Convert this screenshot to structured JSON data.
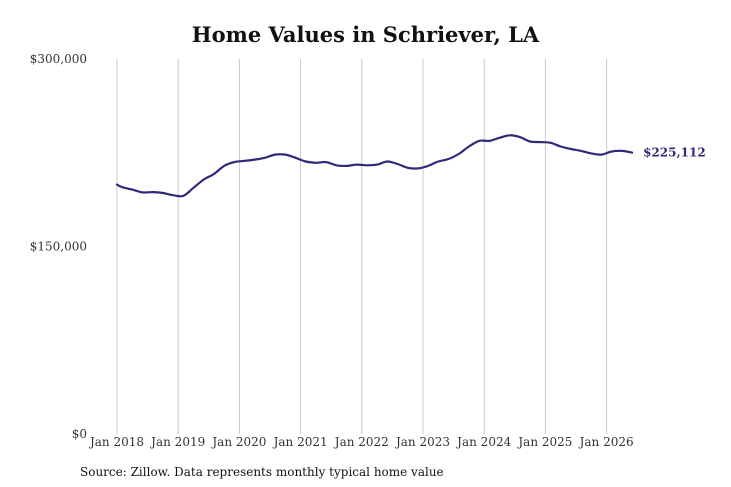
{
  "chart_data": {
    "type": "line",
    "title": "Home Values in Schriever, LA",
    "source": "Source: Zillow. Data represents monthly typical home value",
    "xlabel": "",
    "ylabel": "",
    "ylim": [
      0,
      300000
    ],
    "xlim": [
      "2018-01",
      "2026-06"
    ],
    "grid": {
      "vertical": true,
      "horizontal": false
    },
    "y_ticks": [
      {
        "value": 0,
        "label": "$0"
      },
      {
        "value": 150000,
        "label": "$150,000"
      },
      {
        "value": 300000,
        "label": "$300,000"
      }
    ],
    "x_ticks": [
      {
        "date": "2018-01",
        "label": "Jan 2018"
      },
      {
        "date": "2019-01",
        "label": "Jan 2019"
      },
      {
        "date": "2020-01",
        "label": "Jan 2020"
      },
      {
        "date": "2021-01",
        "label": "Jan 2021"
      },
      {
        "date": "2022-01",
        "label": "Jan 2022"
      },
      {
        "date": "2023-01",
        "label": "Jan 2023"
      },
      {
        "date": "2024-01",
        "label": "Jan 2024"
      },
      {
        "date": "2025-01",
        "label": "Jan 2025"
      },
      {
        "date": "2026-01",
        "label": "Jan 2026"
      }
    ],
    "end_label": "$225,112",
    "colors": {
      "line": "#2e2a7a",
      "grid": "#c8c8c8",
      "end_label": "#2e2a7a"
    },
    "series": [
      {
        "points": [
          [
            "2018-01",
            199500
          ],
          [
            "2018-02",
            197500
          ],
          [
            "2018-04",
            195500
          ],
          [
            "2018-06",
            193300
          ],
          [
            "2018-08",
            193500
          ],
          [
            "2018-10",
            192800
          ],
          [
            "2018-12",
            191000
          ],
          [
            "2019-02",
            190500
          ],
          [
            "2019-04",
            197000
          ],
          [
            "2019-06",
            203500
          ],
          [
            "2019-08",
            208000
          ],
          [
            "2019-10",
            214500
          ],
          [
            "2019-12",
            217500
          ],
          [
            "2020-02",
            218500
          ],
          [
            "2020-04",
            219500
          ],
          [
            "2020-06",
            221000
          ],
          [
            "2020-08",
            223500
          ],
          [
            "2020-10",
            223500
          ],
          [
            "2020-12",
            221000
          ],
          [
            "2021-02",
            218000
          ],
          [
            "2021-04",
            217000
          ],
          [
            "2021-06",
            217500
          ],
          [
            "2021-08",
            215000
          ],
          [
            "2021-10",
            214500
          ],
          [
            "2021-12",
            215500
          ],
          [
            "2022-02",
            215000
          ],
          [
            "2022-04",
            215500
          ],
          [
            "2022-06",
            218000
          ],
          [
            "2022-08",
            216000
          ],
          [
            "2022-10",
            213000
          ],
          [
            "2022-12",
            212500
          ],
          [
            "2023-02",
            214500
          ],
          [
            "2023-04",
            218000
          ],
          [
            "2023-06",
            220000
          ],
          [
            "2023-08",
            224000
          ],
          [
            "2023-10",
            230000
          ],
          [
            "2023-12",
            234500
          ],
          [
            "2024-02",
            234500
          ],
          [
            "2024-04",
            237000
          ],
          [
            "2024-06",
            239000
          ],
          [
            "2024-08",
            237500
          ],
          [
            "2024-10",
            234000
          ],
          [
            "2024-12",
            233500
          ],
          [
            "2025-02",
            233000
          ],
          [
            "2025-04",
            230000
          ],
          [
            "2025-06",
            228000
          ],
          [
            "2025-08",
            226500
          ],
          [
            "2025-10",
            224500
          ],
          [
            "2025-12",
            223500
          ],
          [
            "2026-02",
            226000
          ],
          [
            "2026-04",
            226500
          ],
          [
            "2026-06",
            225112
          ]
        ]
      }
    ]
  }
}
